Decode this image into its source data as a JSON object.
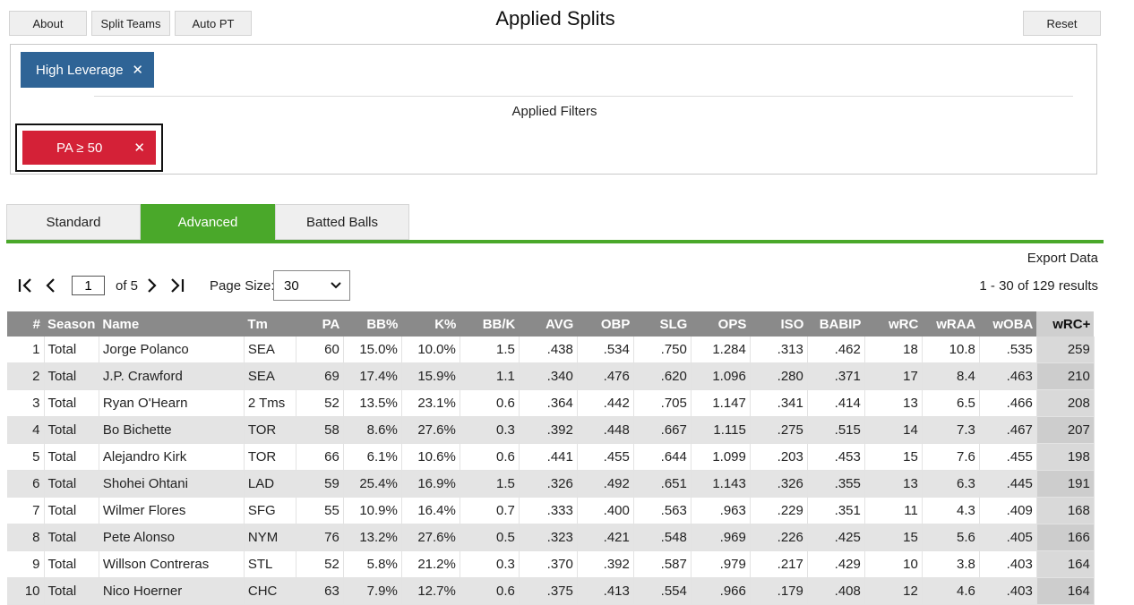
{
  "header": {
    "about": "About",
    "split_teams": "Split Teams",
    "auto_pt": "Auto PT",
    "title": "Applied Splits",
    "reset": "Reset"
  },
  "splits": {
    "chip": "High Leverage",
    "filters_label": "Applied Filters",
    "filter_chip": "PA ≥ 50",
    "close_glyph": "✕"
  },
  "tabs": [
    "Standard",
    "Advanced",
    "Batted Balls"
  ],
  "active_tab": "Advanced",
  "export": "Export Data",
  "pager": {
    "page": "1",
    "of_text": "of 5",
    "page_size_label": "Page Size:",
    "page_size": "30",
    "results": "1 - 30 of 129 results"
  },
  "table": {
    "columns": [
      "#",
      "Season",
      "Name",
      "Tm",
      "PA",
      "BB%",
      "K%",
      "BB/K",
      "AVG",
      "OBP",
      "SLG",
      "OPS",
      "ISO",
      "BABIP",
      "wRC",
      "wRAA",
      "wOBA",
      "wRC+"
    ],
    "rows": [
      [
        "1",
        "Total",
        "Jorge Polanco",
        "SEA",
        "60",
        "15.0%",
        "10.0%",
        "1.5",
        ".438",
        ".534",
        ".750",
        "1.284",
        ".313",
        ".462",
        "18",
        "10.8",
        ".535",
        "259"
      ],
      [
        "2",
        "Total",
        "J.P. Crawford",
        "SEA",
        "69",
        "17.4%",
        "15.9%",
        "1.1",
        ".340",
        ".476",
        ".620",
        "1.096",
        ".280",
        ".371",
        "17",
        "8.4",
        ".463",
        "210"
      ],
      [
        "3",
        "Total",
        "Ryan O'Hearn",
        "2 Tms",
        "52",
        "13.5%",
        "23.1%",
        "0.6",
        ".364",
        ".442",
        ".705",
        "1.147",
        ".341",
        ".414",
        "13",
        "6.5",
        ".466",
        "208"
      ],
      [
        "4",
        "Total",
        "Bo Bichette",
        "TOR",
        "58",
        "8.6%",
        "27.6%",
        "0.3",
        ".392",
        ".448",
        ".667",
        "1.115",
        ".275",
        ".515",
        "14",
        "7.3",
        ".467",
        "207"
      ],
      [
        "5",
        "Total",
        "Alejandro Kirk",
        "TOR",
        "66",
        "6.1%",
        "10.6%",
        "0.6",
        ".441",
        ".455",
        ".644",
        "1.099",
        ".203",
        ".453",
        "15",
        "7.6",
        ".455",
        "198"
      ],
      [
        "6",
        "Total",
        "Shohei Ohtani",
        "LAD",
        "59",
        "25.4%",
        "16.9%",
        "1.5",
        ".326",
        ".492",
        ".651",
        "1.143",
        ".326",
        ".355",
        "13",
        "6.3",
        ".445",
        "191"
      ],
      [
        "7",
        "Total",
        "Wilmer Flores",
        "SFG",
        "55",
        "10.9%",
        "16.4%",
        "0.7",
        ".333",
        ".400",
        ".563",
        ".963",
        ".229",
        ".351",
        "11",
        "4.3",
        ".409",
        "168"
      ],
      [
        "8",
        "Total",
        "Pete Alonso",
        "NYM",
        "76",
        "13.2%",
        "27.6%",
        "0.5",
        ".323",
        ".421",
        ".548",
        ".969",
        ".226",
        ".425",
        "15",
        "5.6",
        ".405",
        "166"
      ],
      [
        "9",
        "Total",
        "Willson Contreras",
        "STL",
        "52",
        "5.8%",
        "21.2%",
        "0.3",
        ".370",
        ".392",
        ".587",
        ".979",
        ".217",
        ".429",
        "10",
        "3.8",
        ".403",
        "164"
      ],
      [
        "10",
        "Total",
        "Nico Hoerner",
        "CHC",
        "63",
        "7.9%",
        "12.7%",
        "0.6",
        ".375",
        ".413",
        ".554",
        ".966",
        ".179",
        ".408",
        "12",
        "4.6",
        ".403",
        "164"
      ]
    ]
  }
}
